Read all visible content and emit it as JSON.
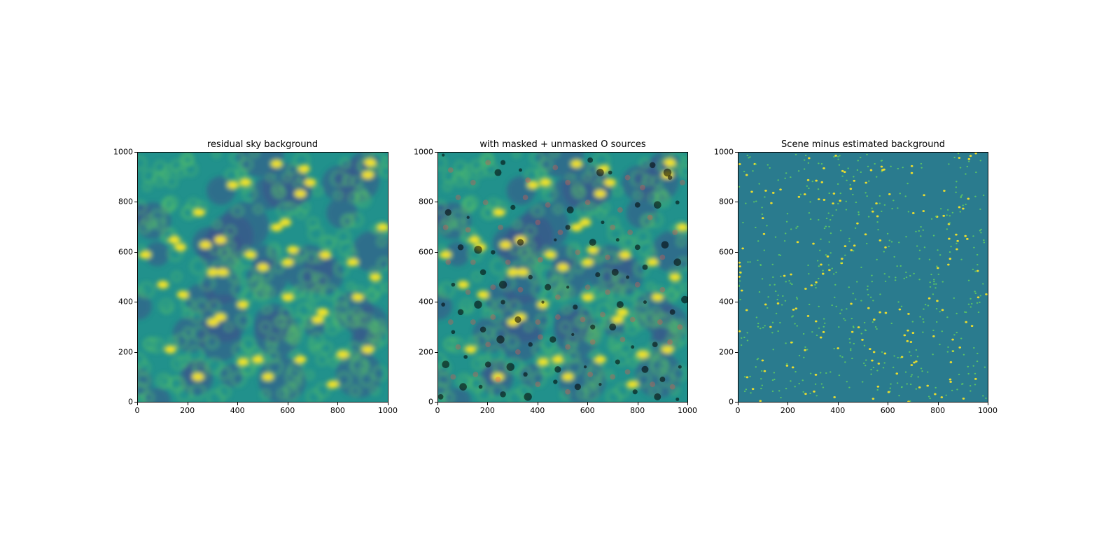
{
  "colors": {
    "viridis_low": "#440154",
    "viridis_dark_blue": "#3b528b",
    "viridis_teal": "#21918c",
    "viridis_green": "#5ec962",
    "viridis_yellow": "#fde725",
    "mask_marker": "#000000",
    "unmasked_marker": "#e6594b"
  },
  "chart_data": [
    {
      "type": "heatmap",
      "title": "residual sky background",
      "xlim": [
        0,
        1000
      ],
      "ylim": [
        0,
        1000
      ],
      "x_ticks": [
        0,
        200,
        400,
        600,
        800,
        1000
      ],
      "y_ticks": [
        0,
        200,
        400,
        600,
        800,
        1000
      ],
      "colormap": "viridis",
      "grid": false,
      "bright_blobs": [
        {
          "x": 380,
          "y": 870
        },
        {
          "x": 430,
          "y": 880
        },
        {
          "x": 555,
          "y": 955
        },
        {
          "x": 665,
          "y": 935
        },
        {
          "x": 690,
          "y": 880
        },
        {
          "x": 650,
          "y": 835
        },
        {
          "x": 930,
          "y": 960
        },
        {
          "x": 920,
          "y": 910
        },
        {
          "x": 145,
          "y": 650
        },
        {
          "x": 170,
          "y": 620
        },
        {
          "x": 245,
          "y": 760
        },
        {
          "x": 270,
          "y": 630
        },
        {
          "x": 330,
          "y": 650
        },
        {
          "x": 555,
          "y": 700
        },
        {
          "x": 590,
          "y": 720
        },
        {
          "x": 450,
          "y": 590
        },
        {
          "x": 340,
          "y": 520
        },
        {
          "x": 500,
          "y": 540
        },
        {
          "x": 300,
          "y": 520
        },
        {
          "x": 600,
          "y": 560
        },
        {
          "x": 620,
          "y": 610
        },
        {
          "x": 750,
          "y": 590
        },
        {
          "x": 860,
          "y": 560
        },
        {
          "x": 330,
          "y": 340
        },
        {
          "x": 300,
          "y": 320
        },
        {
          "x": 720,
          "y": 330
        },
        {
          "x": 740,
          "y": 360
        },
        {
          "x": 600,
          "y": 420
        },
        {
          "x": 130,
          "y": 210
        },
        {
          "x": 420,
          "y": 160
        },
        {
          "x": 480,
          "y": 170
        },
        {
          "x": 650,
          "y": 170
        },
        {
          "x": 820,
          "y": 190
        },
        {
          "x": 920,
          "y": 210
        },
        {
          "x": 950,
          "y": 500
        },
        {
          "x": 100,
          "y": 470
        },
        {
          "x": 180,
          "y": 430
        },
        {
          "x": 420,
          "y": 390
        },
        {
          "x": 880,
          "y": 420
        },
        {
          "x": 240,
          "y": 100
        },
        {
          "x": 520,
          "y": 100
        },
        {
          "x": 780,
          "y": 70
        },
        {
          "x": 30,
          "y": 590
        },
        {
          "x": 980,
          "y": 700
        }
      ]
    },
    {
      "type": "scatter",
      "title": "with masked + unmasked O sources",
      "xlim": [
        0,
        1000
      ],
      "ylim": [
        0,
        1000
      ],
      "x_ticks": [
        0,
        200,
        400,
        600,
        800,
        1000
      ],
      "y_ticks": [
        0,
        200,
        400,
        600,
        800,
        1000
      ],
      "background": "same residual sky background image",
      "series": [
        {
          "marker_color": "#000000",
          "points": [
            {
              "x": 20,
              "y": 990
            },
            {
              "x": 260,
              "y": 960
            },
            {
              "x": 240,
              "y": 920
            },
            {
              "x": 330,
              "y": 930
            },
            {
              "x": 610,
              "y": 970
            },
            {
              "x": 650,
              "y": 920
            },
            {
              "x": 690,
              "y": 920
            },
            {
              "x": 860,
              "y": 950
            },
            {
              "x": 920,
              "y": 920
            },
            {
              "x": 930,
              "y": 900
            },
            {
              "x": 40,
              "y": 760
            },
            {
              "x": 120,
              "y": 740
            },
            {
              "x": 300,
              "y": 780
            },
            {
              "x": 530,
              "y": 770
            },
            {
              "x": 660,
              "y": 720
            },
            {
              "x": 800,
              "y": 790
            },
            {
              "x": 880,
              "y": 790
            },
            {
              "x": 960,
              "y": 800
            },
            {
              "x": 90,
              "y": 620
            },
            {
              "x": 160,
              "y": 610
            },
            {
              "x": 220,
              "y": 600
            },
            {
              "x": 330,
              "y": 640
            },
            {
              "x": 470,
              "y": 650
            },
            {
              "x": 520,
              "y": 700
            },
            {
              "x": 620,
              "y": 640
            },
            {
              "x": 720,
              "y": 650
            },
            {
              "x": 800,
              "y": 620
            },
            {
              "x": 910,
              "y": 630
            },
            {
              "x": 60,
              "y": 470
            },
            {
              "x": 180,
              "y": 520
            },
            {
              "x": 260,
              "y": 470
            },
            {
              "x": 370,
              "y": 500
            },
            {
              "x": 440,
              "y": 460
            },
            {
              "x": 520,
              "y": 460
            },
            {
              "x": 640,
              "y": 510
            },
            {
              "x": 710,
              "y": 520
            },
            {
              "x": 760,
              "y": 500
            },
            {
              "x": 830,
              "y": 540
            },
            {
              "x": 960,
              "y": 560
            },
            {
              "x": 20,
              "y": 390
            },
            {
              "x": 90,
              "y": 360
            },
            {
              "x": 160,
              "y": 390
            },
            {
              "x": 260,
              "y": 400
            },
            {
              "x": 320,
              "y": 330
            },
            {
              "x": 420,
              "y": 400
            },
            {
              "x": 550,
              "y": 380
            },
            {
              "x": 730,
              "y": 390
            },
            {
              "x": 830,
              "y": 400
            },
            {
              "x": 940,
              "y": 360
            },
            {
              "x": 990,
              "y": 410
            },
            {
              "x": 60,
              "y": 280
            },
            {
              "x": 180,
              "y": 290
            },
            {
              "x": 250,
              "y": 250
            },
            {
              "x": 370,
              "y": 230
            },
            {
              "x": 460,
              "y": 250
            },
            {
              "x": 540,
              "y": 270
            },
            {
              "x": 620,
              "y": 300
            },
            {
              "x": 700,
              "y": 300
            },
            {
              "x": 780,
              "y": 220
            },
            {
              "x": 870,
              "y": 230
            },
            {
              "x": 30,
              "y": 150
            },
            {
              "x": 110,
              "y": 180
            },
            {
              "x": 200,
              "y": 150
            },
            {
              "x": 290,
              "y": 140
            },
            {
              "x": 350,
              "y": 110
            },
            {
              "x": 480,
              "y": 130
            },
            {
              "x": 590,
              "y": 140
            },
            {
              "x": 720,
              "y": 160
            },
            {
              "x": 830,
              "y": 130
            },
            {
              "x": 970,
              "y": 140
            },
            {
              "x": 10,
              "y": 20
            },
            {
              "x": 100,
              "y": 60
            },
            {
              "x": 170,
              "y": 60
            },
            {
              "x": 260,
              "y": 30
            },
            {
              "x": 360,
              "y": 20
            },
            {
              "x": 470,
              "y": 80
            },
            {
              "x": 560,
              "y": 60
            },
            {
              "x": 650,
              "y": 70
            },
            {
              "x": 790,
              "y": 40
            },
            {
              "x": 880,
              "y": 20
            },
            {
              "x": 960,
              "y": 10
            },
            {
              "x": 900,
              "y": 90
            }
          ]
        },
        {
          "marker_color": "#e6594b",
          "points": [
            {
              "x": 50,
              "y": 930
            },
            {
              "x": 140,
              "y": 880
            },
            {
              "x": 200,
              "y": 960
            },
            {
              "x": 360,
              "y": 890
            },
            {
              "x": 470,
              "y": 940
            },
            {
              "x": 520,
              "y": 880
            },
            {
              "x": 760,
              "y": 900
            },
            {
              "x": 820,
              "y": 860
            },
            {
              "x": 980,
              "y": 880
            },
            {
              "x": 80,
              "y": 820
            },
            {
              "x": 190,
              "y": 800
            },
            {
              "x": 350,
              "y": 820
            },
            {
              "x": 440,
              "y": 790
            },
            {
              "x": 600,
              "y": 800
            },
            {
              "x": 730,
              "y": 770
            },
            {
              "x": 850,
              "y": 740
            },
            {
              "x": 30,
              "y": 700
            },
            {
              "x": 120,
              "y": 690
            },
            {
              "x": 250,
              "y": 700
            },
            {
              "x": 400,
              "y": 720
            },
            {
              "x": 490,
              "y": 680
            },
            {
              "x": 700,
              "y": 700
            },
            {
              "x": 770,
              "y": 680
            },
            {
              "x": 950,
              "y": 680
            },
            {
              "x": 40,
              "y": 560
            },
            {
              "x": 140,
              "y": 560
            },
            {
              "x": 280,
              "y": 560
            },
            {
              "x": 410,
              "y": 570
            },
            {
              "x": 560,
              "y": 600
            },
            {
              "x": 680,
              "y": 580
            },
            {
              "x": 900,
              "y": 580
            },
            {
              "x": 120,
              "y": 440
            },
            {
              "x": 220,
              "y": 460
            },
            {
              "x": 330,
              "y": 450
            },
            {
              "x": 480,
              "y": 420
            },
            {
              "x": 600,
              "y": 460
            },
            {
              "x": 680,
              "y": 440
            },
            {
              "x": 800,
              "y": 470
            },
            {
              "x": 900,
              "y": 450
            },
            {
              "x": 50,
              "y": 320
            },
            {
              "x": 140,
              "y": 320
            },
            {
              "x": 220,
              "y": 340
            },
            {
              "x": 400,
              "y": 320
            },
            {
              "x": 480,
              "y": 340
            },
            {
              "x": 580,
              "y": 330
            },
            {
              "x": 660,
              "y": 350
            },
            {
              "x": 780,
              "y": 330
            },
            {
              "x": 890,
              "y": 320
            },
            {
              "x": 970,
              "y": 300
            },
            {
              "x": 80,
              "y": 220
            },
            {
              "x": 200,
              "y": 230
            },
            {
              "x": 320,
              "y": 200
            },
            {
              "x": 410,
              "y": 260
            },
            {
              "x": 520,
              "y": 220
            },
            {
              "x": 620,
              "y": 240
            },
            {
              "x": 740,
              "y": 250
            },
            {
              "x": 930,
              "y": 240
            },
            {
              "x": 60,
              "y": 100
            },
            {
              "x": 150,
              "y": 110
            },
            {
              "x": 240,
              "y": 90
            },
            {
              "x": 400,
              "y": 70
            },
            {
              "x": 520,
              "y": 40
            },
            {
              "x": 610,
              "y": 110
            },
            {
              "x": 700,
              "y": 100
            },
            {
              "x": 760,
              "y": 120
            },
            {
              "x": 860,
              "y": 70
            },
            {
              "x": 940,
              "y": 60
            }
          ]
        }
      ]
    },
    {
      "type": "heatmap",
      "title": "Scene minus estimated background",
      "xlim": [
        0,
        1000
      ],
      "ylim": [
        0,
        1000
      ],
      "x_ticks": [
        0,
        200,
        400,
        600,
        800,
        1000
      ],
      "y_ticks": [
        0,
        200,
        400,
        600,
        800,
        1000
      ],
      "colormap": "viridis",
      "grid": false,
      "background_level_color": "#2a7b8e"
    }
  ]
}
